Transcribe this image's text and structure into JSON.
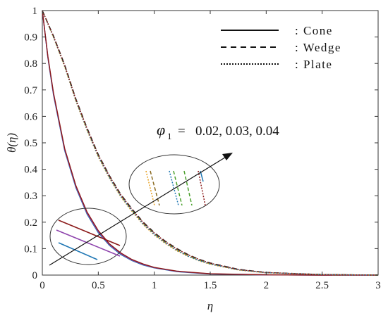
{
  "chart_data": {
    "type": "line",
    "title": "",
    "xlabel": "η",
    "ylabel": "θ(η)",
    "xlim": [
      0,
      3
    ],
    "ylim": [
      0,
      1
    ],
    "xticks": [
      "0",
      "0.5",
      "1",
      "1.5",
      "2",
      "2.5",
      "3"
    ],
    "yticks": [
      "0",
      "0.1",
      "0.2",
      "0.3",
      "0.4",
      "0.5",
      "0.6",
      "0.7",
      "0.8",
      "0.9",
      "1"
    ],
    "grid": false,
    "legend_position": "top-right",
    "legend": [
      {
        "label": ": Cone",
        "style": "solid"
      },
      {
        "label": ": Wedge",
        "style": "dashed"
      },
      {
        "label": ": Plate",
        "style": "dotted"
      }
    ],
    "annotation": {
      "symbol": "φ",
      "subscript": "1",
      "text": "=   0.02, 0.03, 0.04",
      "direction": "increasing"
    },
    "colors": {
      "blue": "#1f77b4",
      "purple": "#8e44ad",
      "red": "#8b1a1a",
      "orange": "#e8a020",
      "green": "#4aa02c",
      "olive": "#8a8a2a"
    },
    "series": [
      {
        "group": "Cone",
        "style": "solid",
        "phi1": 0.02,
        "color": "#1f77b4",
        "x": [
          0,
          0.05,
          0.1,
          0.2,
          0.3,
          0.4,
          0.5,
          0.6,
          0.7,
          0.8,
          0.9,
          1.0,
          1.2,
          1.5,
          2.0,
          2.5,
          3.0
        ],
        "y": [
          1,
          0.82,
          0.68,
          0.47,
          0.33,
          0.23,
          0.16,
          0.112,
          0.078,
          0.055,
          0.038,
          0.027,
          0.013,
          0.004,
          0.001,
          0,
          0
        ]
      },
      {
        "group": "Cone",
        "style": "solid",
        "phi1": 0.03,
        "color": "#8e44ad",
        "x": [
          0,
          0.05,
          0.1,
          0.2,
          0.3,
          0.4,
          0.5,
          0.6,
          0.7,
          0.8,
          0.9,
          1.0,
          1.2,
          1.5,
          2.0,
          2.5,
          3.0
        ],
        "y": [
          1,
          0.823,
          0.684,
          0.474,
          0.334,
          0.234,
          0.164,
          0.115,
          0.081,
          0.057,
          0.04,
          0.028,
          0.014,
          0.0045,
          0.001,
          0,
          0
        ]
      },
      {
        "group": "Cone",
        "style": "solid",
        "phi1": 0.04,
        "color": "#8b1a1a",
        "x": [
          0,
          0.05,
          0.1,
          0.2,
          0.3,
          0.4,
          0.5,
          0.6,
          0.7,
          0.8,
          0.9,
          1.0,
          1.2,
          1.5,
          2.0,
          2.5,
          3.0
        ],
        "y": [
          1,
          0.826,
          0.688,
          0.478,
          0.338,
          0.238,
          0.168,
          0.118,
          0.084,
          0.059,
          0.042,
          0.029,
          0.015,
          0.005,
          0.001,
          0,
          0
        ]
      },
      {
        "group": "Wedge",
        "style": "dashed",
        "phi1": 0.02,
        "color": "#e8a020",
        "x": [
          0,
          0.1,
          0.2,
          0.3,
          0.4,
          0.5,
          0.6,
          0.7,
          0.8,
          0.9,
          1.0,
          1.1,
          1.2,
          1.3,
          1.4,
          1.5,
          1.75,
          2.0,
          2.5,
          3.0
        ],
        "y": [
          1,
          0.9,
          0.79,
          0.66,
          0.55,
          0.45,
          0.37,
          0.3,
          0.245,
          0.195,
          0.155,
          0.122,
          0.095,
          0.073,
          0.056,
          0.042,
          0.02,
          0.009,
          0.002,
          0
        ]
      },
      {
        "group": "Wedge",
        "style": "dashed",
        "phi1": 0.03,
        "color": "#4aa02c",
        "x": [
          0,
          0.1,
          0.2,
          0.3,
          0.4,
          0.5,
          0.6,
          0.7,
          0.8,
          0.9,
          1.0,
          1.1,
          1.2,
          1.3,
          1.4,
          1.5,
          1.75,
          2.0,
          2.5,
          3.0
        ],
        "y": [
          1,
          0.902,
          0.792,
          0.663,
          0.553,
          0.453,
          0.373,
          0.303,
          0.248,
          0.198,
          0.158,
          0.125,
          0.098,
          0.076,
          0.058,
          0.044,
          0.021,
          0.0095,
          0.002,
          0
        ]
      },
      {
        "group": "Wedge",
        "style": "dashed",
        "phi1": 0.04,
        "color": "#222222",
        "x": [
          0,
          0.1,
          0.2,
          0.3,
          0.4,
          0.5,
          0.6,
          0.7,
          0.8,
          0.9,
          1.0,
          1.1,
          1.2,
          1.3,
          1.4,
          1.5,
          1.75,
          2.0,
          2.5,
          3.0
        ],
        "y": [
          1,
          0.904,
          0.795,
          0.666,
          0.556,
          0.456,
          0.376,
          0.306,
          0.251,
          0.201,
          0.161,
          0.128,
          0.101,
          0.078,
          0.06,
          0.046,
          0.022,
          0.01,
          0.002,
          0
        ]
      },
      {
        "group": "Plate",
        "style": "dotted",
        "phi1": 0.02,
        "color": "#e8a020",
        "x": [
          0,
          0.1,
          0.2,
          0.3,
          0.4,
          0.5,
          0.6,
          0.7,
          0.8,
          0.9,
          1.0,
          1.1,
          1.2,
          1.3,
          1.4,
          1.5,
          1.75,
          2.0,
          2.5,
          3.0
        ],
        "y": [
          1,
          0.898,
          0.787,
          0.657,
          0.546,
          0.446,
          0.366,
          0.296,
          0.241,
          0.191,
          0.151,
          0.119,
          0.092,
          0.071,
          0.054,
          0.041,
          0.019,
          0.0085,
          0.002,
          0
        ]
      },
      {
        "group": "Plate",
        "style": "dotted",
        "phi1": 0.03,
        "color": "#1f77b4",
        "x": [
          0,
          0.1,
          0.2,
          0.3,
          0.4,
          0.5,
          0.6,
          0.7,
          0.8,
          0.9,
          1.0,
          1.1,
          1.2,
          1.3,
          1.4,
          1.5,
          1.75,
          2.0,
          2.5,
          3.0
        ],
        "y": [
          1,
          0.9,
          0.79,
          0.66,
          0.549,
          0.449,
          0.369,
          0.299,
          0.244,
          0.194,
          0.154,
          0.121,
          0.094,
          0.072,
          0.055,
          0.042,
          0.02,
          0.009,
          0.002,
          0
        ]
      },
      {
        "group": "Plate",
        "style": "dotted",
        "phi1": 0.04,
        "color": "#8b1a1a",
        "x": [
          0,
          0.1,
          0.2,
          0.3,
          0.4,
          0.5,
          0.6,
          0.7,
          0.8,
          0.9,
          1.0,
          1.1,
          1.2,
          1.3,
          1.4,
          1.5,
          1.75,
          2.0,
          2.5,
          3.0
        ],
        "y": [
          1,
          0.903,
          0.793,
          0.664,
          0.554,
          0.454,
          0.374,
          0.304,
          0.249,
          0.199,
          0.159,
          0.126,
          0.099,
          0.077,
          0.059,
          0.045,
          0.021,
          0.0098,
          0.002,
          0
        ]
      }
    ]
  }
}
